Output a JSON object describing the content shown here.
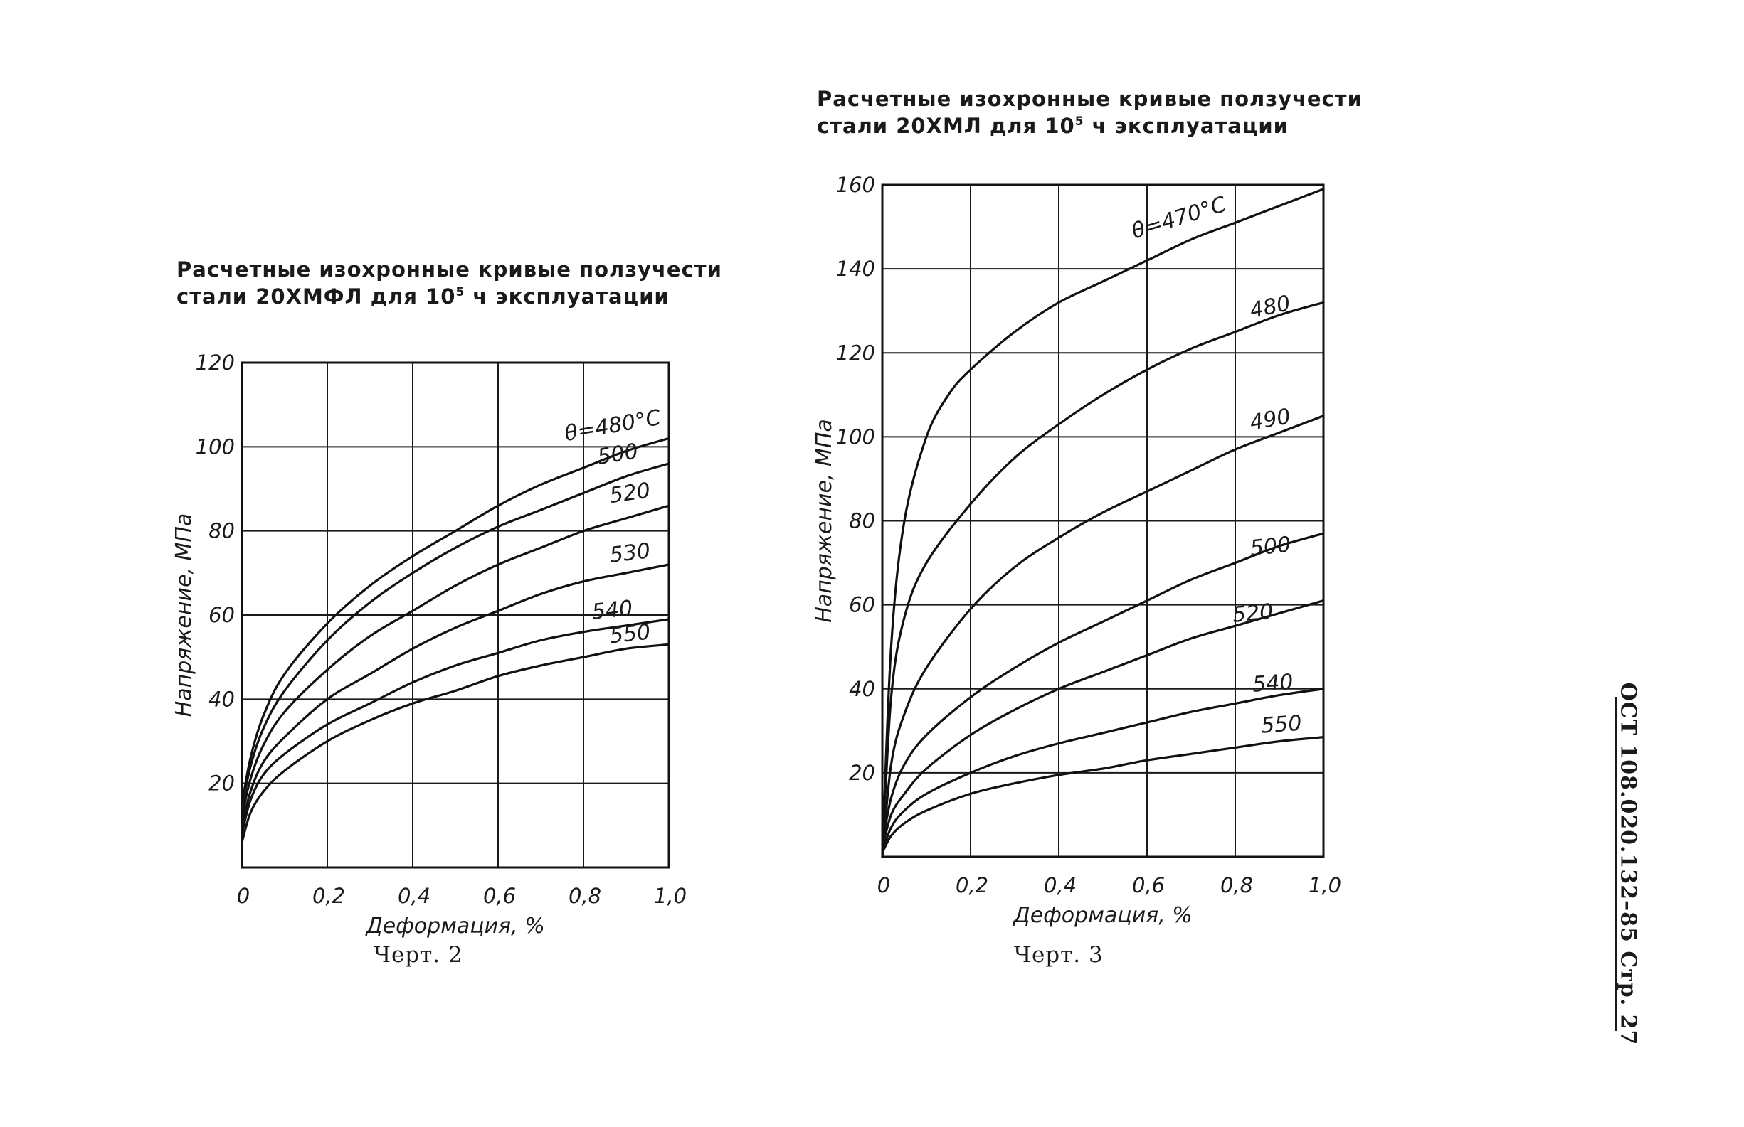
{
  "chart_data": [
    {
      "type": "line",
      "title_line1": "Расчетные изохронные кривые ползучести",
      "title_line2_pre": "стали 20ХМФЛ для 10",
      "title_sup": "5",
      "title_line2_post": " ч эксплуатации",
      "caption": "Черт. 2",
      "xlabel": "Деформация, %",
      "ylabel": "Напряжение, МПа",
      "xlim": [
        0,
        1.0
      ],
      "ylim": [
        0,
        120
      ],
      "xticks": [
        0,
        0.2,
        0.4,
        0.6,
        0.8,
        1.0
      ],
      "yticks": [
        20,
        40,
        60,
        80,
        100,
        120
      ],
      "xtick_labels": [
        "0",
        "0,2",
        "0,4",
        "0,6",
        "0,8",
        "1,0"
      ],
      "ytick_labels": [
        "20",
        "40",
        "60",
        "80",
        "100",
        "120"
      ],
      "grid": true,
      "series": [
        {
          "name": "θ=480°C",
          "x": [
            0,
            0.02,
            0.05,
            0.1,
            0.2,
            0.3,
            0.4,
            0.5,
            0.6,
            0.7,
            0.8,
            0.9,
            1.0
          ],
          "y": [
            15,
            26,
            36,
            46,
            58,
            67,
            74,
            80,
            86,
            91,
            95,
            99,
            102
          ]
        },
        {
          "name": "500",
          "x": [
            0,
            0.02,
            0.05,
            0.1,
            0.2,
            0.3,
            0.4,
            0.5,
            0.6,
            0.7,
            0.8,
            0.9,
            1.0
          ],
          "y": [
            14,
            24,
            33,
            42,
            54,
            63,
            70,
            76,
            81,
            85,
            89,
            93,
            96
          ]
        },
        {
          "name": "520",
          "x": [
            0,
            0.02,
            0.05,
            0.1,
            0.2,
            0.3,
            0.4,
            0.5,
            0.6,
            0.7,
            0.8,
            0.9,
            1.0
          ],
          "y": [
            12,
            21,
            29,
            37,
            47,
            55,
            61,
            67,
            72,
            76,
            80,
            83,
            86
          ]
        },
        {
          "name": "530",
          "x": [
            0,
            0.02,
            0.05,
            0.1,
            0.2,
            0.3,
            0.4,
            0.5,
            0.6,
            0.7,
            0.8,
            0.9,
            1.0
          ],
          "y": [
            10,
            18,
            25,
            31,
            40,
            46,
            52,
            57,
            61,
            65,
            68,
            70,
            72
          ]
        },
        {
          "name": "540",
          "x": [
            0,
            0.02,
            0.05,
            0.1,
            0.2,
            0.3,
            0.4,
            0.5,
            0.6,
            0.7,
            0.8,
            0.9,
            1.0
          ],
          "y": [
            8,
            16,
            22,
            27,
            34,
            39,
            44,
            48,
            51,
            54,
            56,
            57.5,
            59
          ]
        },
        {
          "name": "550",
          "x": [
            0,
            0.02,
            0.05,
            0.1,
            0.2,
            0.3,
            0.4,
            0.5,
            0.6,
            0.7,
            0.8,
            0.9,
            1.0
          ],
          "y": [
            6,
            13,
            18,
            23,
            30,
            35,
            39,
            42,
            45.5,
            48,
            50,
            52,
            53
          ]
        }
      ]
    },
    {
      "type": "line",
      "title_line1": "Расчетные изохронные кривые ползучести",
      "title_line2_pre": "стали 20ХМЛ для 10",
      "title_sup": "5",
      "title_line2_post": " ч эксплуатации",
      "caption": "Черт. 3",
      "xlabel": "Деформация, %",
      "ylabel": "Напряжение, МПа",
      "xlim": [
        0,
        1.0
      ],
      "ylim": [
        0,
        160
      ],
      "xticks": [
        0,
        0.2,
        0.4,
        0.6,
        0.8,
        1.0
      ],
      "yticks": [
        20,
        40,
        60,
        80,
        100,
        120,
        140,
        160
      ],
      "xtick_labels": [
        "0",
        "0,2",
        "0,4",
        "0,6",
        "0,8",
        "1,0"
      ],
      "ytick_labels": [
        "20",
        "40",
        "60",
        "80",
        "100",
        "120",
        "140",
        "160"
      ],
      "grid": true,
      "series": [
        {
          "name": "θ=470°C",
          "x": [
            0,
            0.02,
            0.05,
            0.1,
            0.15,
            0.2,
            0.3,
            0.4,
            0.5,
            0.6,
            0.7,
            0.8,
            0.9,
            1.0
          ],
          "y": [
            0,
            50,
            80,
            100,
            110,
            116,
            125,
            132,
            137,
            142,
            147,
            151,
            155,
            159
          ]
        },
        {
          "name": "480",
          "x": [
            0,
            0.02,
            0.05,
            0.1,
            0.2,
            0.3,
            0.4,
            0.5,
            0.6,
            0.7,
            0.8,
            0.9,
            1.0
          ],
          "y": [
            0,
            38,
            57,
            70,
            84,
            95,
            103,
            110,
            116,
            121,
            125,
            129,
            132
          ]
        },
        {
          "name": "490",
          "x": [
            0,
            0.02,
            0.05,
            0.1,
            0.2,
            0.3,
            0.4,
            0.5,
            0.6,
            0.7,
            0.8,
            0.9,
            1.0
          ],
          "y": [
            0,
            22,
            34,
            45,
            59,
            69,
            76,
            82,
            87,
            92,
            97,
            101,
            105
          ]
        },
        {
          "name": "500",
          "x": [
            0,
            0.02,
            0.05,
            0.1,
            0.2,
            0.3,
            0.4,
            0.5,
            0.6,
            0.7,
            0.8,
            0.9,
            1.0
          ],
          "y": [
            3,
            14,
            22,
            29,
            38,
            45,
            51,
            56,
            61,
            66,
            70,
            74,
            77
          ]
        },
        {
          "name": "520",
          "x": [
            0,
            0.02,
            0.05,
            0.1,
            0.2,
            0.3,
            0.4,
            0.5,
            0.6,
            0.7,
            0.8,
            0.9,
            1.0
          ],
          "y": [
            2,
            10,
            15,
            21,
            29,
            35,
            40,
            44,
            48,
            52,
            55,
            58,
            61
          ]
        },
        {
          "name": "540",
          "x": [
            0,
            0.02,
            0.05,
            0.1,
            0.2,
            0.3,
            0.4,
            0.5,
            0.6,
            0.7,
            0.8,
            0.9,
            1.0
          ],
          "y": [
            1,
            7,
            11,
            15,
            20,
            24,
            27,
            29.5,
            32,
            34.5,
            36.5,
            38.5,
            40
          ]
        },
        {
          "name": "550",
          "x": [
            0,
            0.02,
            0.05,
            0.1,
            0.2,
            0.3,
            0.4,
            0.5,
            0.6,
            0.7,
            0.8,
            0.9,
            1.0
          ],
          "y": [
            1,
            5,
            8,
            11,
            15,
            17.5,
            19.5,
            21,
            23,
            24.5,
            26,
            27.5,
            28.5
          ]
        }
      ]
    }
  ],
  "sidebar": {
    "text": "ОСТ 108.020.132–85 Стр. 27"
  }
}
